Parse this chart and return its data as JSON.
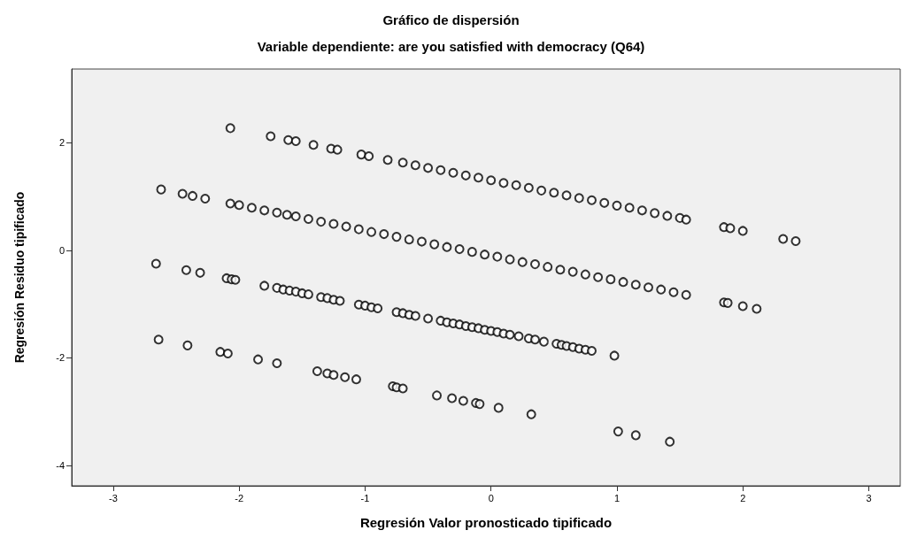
{
  "chart_data": {
    "type": "scatter",
    "title": "Gráfico de dispersión",
    "subtitle": "Variable dependiente: are you satisfied with democracy (Q64)",
    "xlabel": "Regresión Valor pronosticado tipificado",
    "ylabel": "Regresión Residuo tipificado",
    "xlim": [
      -3.33,
      3.25
    ],
    "ylim": [
      -4.38,
      3.37
    ],
    "xticks": [
      -3,
      -2,
      -1,
      0,
      1,
      2,
      3
    ],
    "yticks": [
      -4,
      -2,
      0,
      2
    ],
    "grid": false,
    "marker": "circle",
    "series": [
      {
        "color": "#000000",
        "x": [
          -2.07,
          -1.75,
          -1.61,
          -1.55,
          -1.41,
          -1.27,
          -1.22,
          -1.03,
          -0.97,
          -0.82,
          -0.7,
          -0.6,
          -0.5,
          -0.4,
          -0.3,
          -0.2,
          -0.1,
          0,
          0.1,
          0.2,
          0.3,
          0.4,
          0.5,
          0.6,
          0.7,
          0.8,
          0.9,
          1.0,
          1.1,
          1.2,
          1.3,
          1.4,
          1.5,
          1.55,
          1.85,
          1.9,
          2.0,
          2.32,
          2.42,
          -2.62,
          -2.45,
          -2.37,
          -2.27,
          -2.07,
          -2.0,
          -1.9,
          -1.8,
          -1.7,
          -1.62,
          -1.55,
          -1.45,
          -1.35,
          -1.25,
          -1.15,
          -1.05,
          -0.95,
          -0.85,
          -0.75,
          -0.65,
          -0.55,
          -0.45,
          -0.35,
          -0.25,
          -0.15,
          -0.05,
          0.05,
          0.15,
          0.25,
          0.35,
          0.45,
          0.55,
          0.65,
          0.75,
          0.85,
          0.95,
          1.05,
          1.15,
          1.25,
          1.35,
          1.45,
          1.55,
          1.85,
          1.88,
          2.0,
          2.11,
          -2.66,
          -2.42,
          -2.31,
          -2.1,
          -2.06,
          -2.03,
          -1.8,
          -1.7,
          -1.65,
          -1.6,
          -1.55,
          -1.5,
          -1.45,
          -1.35,
          -1.3,
          -1.25,
          -1.2,
          -1.05,
          -1.0,
          -0.95,
          -0.9,
          -0.75,
          -0.7,
          -0.65,
          -0.6,
          -0.5,
          -0.4,
          -0.35,
          -0.3,
          -0.25,
          -0.2,
          -0.15,
          -0.1,
          -0.05,
          0,
          0.05,
          0.1,
          0.15,
          0.22,
          0.3,
          0.35,
          0.42,
          0.52,
          0.56,
          0.6,
          0.65,
          0.7,
          0.75,
          0.8,
          0.98,
          -2.64,
          -2.41,
          -2.15,
          -2.09,
          -1.85,
          -1.7,
          -1.38,
          -1.3,
          -1.25,
          -1.16,
          -1.07,
          -0.78,
          -0.75,
          -0.7,
          -0.43,
          -0.31,
          -0.22,
          -0.12,
          -0.09,
          0.06,
          0.32,
          1.01,
          1.15,
          1.42
        ],
        "values": [
          2.27,
          2.12,
          2.05,
          2.03,
          1.96,
          1.89,
          1.87,
          1.78,
          1.75,
          1.68,
          1.63,
          1.58,
          1.53,
          1.49,
          1.44,
          1.39,
          1.35,
          1.3,
          1.25,
          1.21,
          1.16,
          1.11,
          1.07,
          1.02,
          0.97,
          0.93,
          0.88,
          0.83,
          0.79,
          0.74,
          0.69,
          0.64,
          0.6,
          0.57,
          0.43,
          0.41,
          0.36,
          0.21,
          0.17,
          1.13,
          1.05,
          1.01,
          0.96,
          0.87,
          0.84,
          0.79,
          0.74,
          0.7,
          0.66,
          0.63,
          0.58,
          0.53,
          0.49,
          0.44,
          0.39,
          0.34,
          0.3,
          0.25,
          0.2,
          0.16,
          0.11,
          0.06,
          0.02,
          -0.03,
          -0.08,
          -0.12,
          -0.17,
          -0.22,
          -0.26,
          -0.31,
          -0.36,
          -0.4,
          -0.45,
          -0.5,
          -0.54,
          -0.59,
          -0.64,
          -0.69,
          -0.73,
          -0.78,
          -0.83,
          -0.97,
          -0.98,
          -1.04,
          -1.09,
          -0.25,
          -0.37,
          -0.42,
          -0.52,
          -0.54,
          -0.55,
          -0.66,
          -0.7,
          -0.73,
          -0.75,
          -0.77,
          -0.8,
          -0.82,
          -0.87,
          -0.89,
          -0.92,
          -0.94,
          -1.01,
          -1.03,
          -1.06,
          -1.08,
          -1.15,
          -1.17,
          -1.2,
          -1.22,
          -1.27,
          -1.31,
          -1.34,
          -1.36,
          -1.38,
          -1.41,
          -1.43,
          -1.45,
          -1.48,
          -1.5,
          -1.52,
          -1.55,
          -1.57,
          -1.6,
          -1.64,
          -1.66,
          -1.7,
          -1.74,
          -1.76,
          -1.78,
          -1.8,
          -1.83,
          -1.85,
          -1.87,
          -1.96,
          -1.66,
          -1.77,
          -1.89,
          -1.92,
          -2.03,
          -2.1,
          -2.25,
          -2.29,
          -2.32,
          -2.36,
          -2.4,
          -2.53,
          -2.55,
          -2.57,
          -2.7,
          -2.75,
          -2.8,
          -2.84,
          -2.86,
          -2.93,
          -3.05,
          -3.37,
          -3.44,
          -3.56
        ]
      }
    ]
  }
}
